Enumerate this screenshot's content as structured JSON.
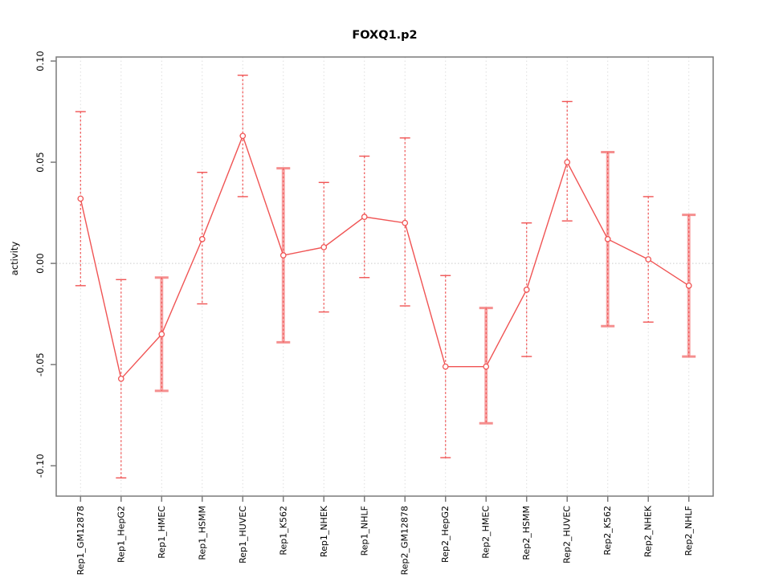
{
  "chart_data": {
    "type": "line",
    "title": "FOXQ1.p2",
    "ylabel": "activity",
    "xlabel": "",
    "categories": [
      "Rep1_GM12878",
      "Rep1_HepG2",
      "Rep1_HMEC",
      "Rep1_HSMM",
      "Rep1_HUVEC",
      "Rep1_K562",
      "Rep1_NHEK",
      "Rep1_NHLF",
      "Rep2_GM12878",
      "Rep2_HepG2",
      "Rep2_HMEC",
      "Rep2_HSMM",
      "Rep2_HUVEC",
      "Rep2_K562",
      "Rep2_NHEK",
      "Rep2_NHLF"
    ],
    "series": [
      {
        "name": "activity",
        "values": [
          0.032,
          -0.057,
          -0.035,
          0.012,
          0.063,
          0.004,
          0.008,
          0.023,
          0.02,
          -0.051,
          -0.051,
          -0.013,
          0.05,
          0.012,
          0.002,
          -0.011
        ],
        "ci_lower": [
          -0.011,
          -0.106,
          -0.063,
          -0.02,
          0.033,
          -0.039,
          -0.024,
          -0.007,
          -0.021,
          -0.096,
          -0.079,
          -0.046,
          0.021,
          -0.031,
          -0.029,
          -0.046
        ],
        "ci_upper": [
          0.075,
          -0.008,
          -0.007,
          0.045,
          0.093,
          0.047,
          0.04,
          0.053,
          0.062,
          -0.006,
          -0.022,
          0.02,
          0.08,
          0.055,
          0.033,
          0.024
        ],
        "thick_band": [
          false,
          false,
          true,
          false,
          false,
          true,
          false,
          false,
          false,
          false,
          true,
          false,
          false,
          true,
          false,
          true
        ]
      }
    ],
    "y_ticks": [
      0.1,
      0.05,
      0.0,
      -0.05,
      -0.1
    ],
    "y_tick_labels": [
      "0.10",
      "0.05",
      "0.00",
      "-0.05",
      "-0.10"
    ],
    "ylim": [
      -0.115,
      0.102
    ],
    "zero_line": true,
    "grid": "vertical-dashed",
    "marker": "open-circle",
    "legend": "none",
    "colors": {
      "series": "#f05454",
      "band": "#f7a6a6",
      "band_cap": "#f58f8f",
      "grid": "#dddddd",
      "zero_line": "#cccccc",
      "frame": "#7a7a7a",
      "text": "#000000"
    }
  }
}
